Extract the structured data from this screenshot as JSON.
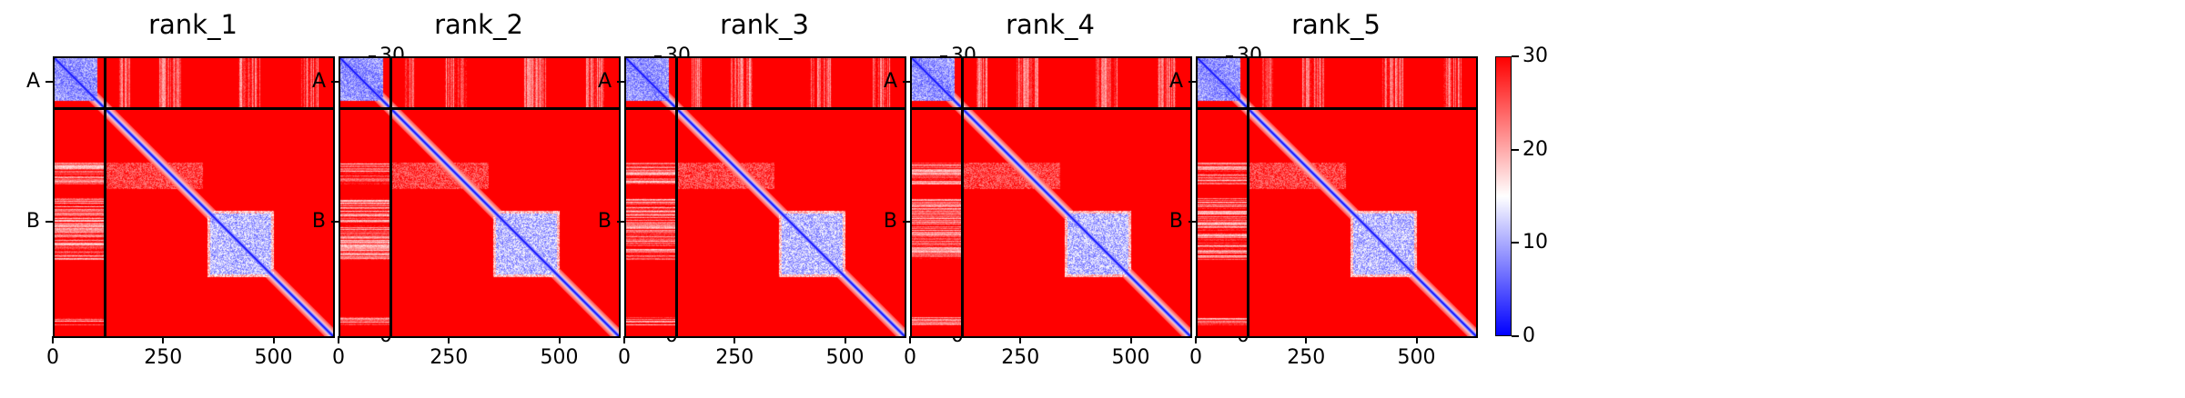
{
  "chart_data": [
    {
      "type": "heatmap",
      "title": "rank_1",
      "seed": 11,
      "colorbar": {
        "ticks": [
          0,
          10,
          20,
          30
        ],
        "range": [
          0,
          30
        ]
      },
      "ylabel_ticks": [
        "A",
        "B"
      ],
      "xticks": [
        0,
        250,
        500
      ],
      "chain_break": 117,
      "length": 635
    },
    {
      "type": "heatmap",
      "title": "rank_2",
      "seed": 23,
      "colorbar": {
        "ticks": [
          0,
          10,
          20,
          30
        ],
        "range": [
          0,
          30
        ]
      },
      "ylabel_ticks": [
        "A",
        "B"
      ],
      "xticks": [
        0,
        250,
        500
      ],
      "chain_break": 117,
      "length": 635
    },
    {
      "type": "heatmap",
      "title": "rank_3",
      "seed": 37,
      "colorbar": {
        "ticks": [
          0,
          10,
          20,
          30
        ],
        "range": [
          0,
          30
        ]
      },
      "ylabel_ticks": [
        "A",
        "B"
      ],
      "xticks": [
        0,
        250,
        500
      ],
      "chain_break": 117,
      "length": 635
    },
    {
      "type": "heatmap",
      "title": "rank_4",
      "seed": 41,
      "colorbar": {
        "ticks": [
          0,
          10,
          20,
          30
        ],
        "range": [
          0,
          30
        ]
      },
      "ylabel_ticks": [
        "A",
        "B"
      ],
      "xticks": [
        0,
        250,
        500
      ],
      "chain_break": 117,
      "length": 635
    },
    {
      "type": "heatmap",
      "title": "rank_5",
      "seed": 53,
      "colorbar": {
        "ticks": [
          0,
          10,
          20,
          30
        ],
        "range": [
          0,
          30
        ]
      },
      "ylabel_ticks": [
        "A",
        "B"
      ],
      "xticks": [
        0,
        250,
        500
      ],
      "chain_break": 117,
      "length": 635
    }
  ]
}
